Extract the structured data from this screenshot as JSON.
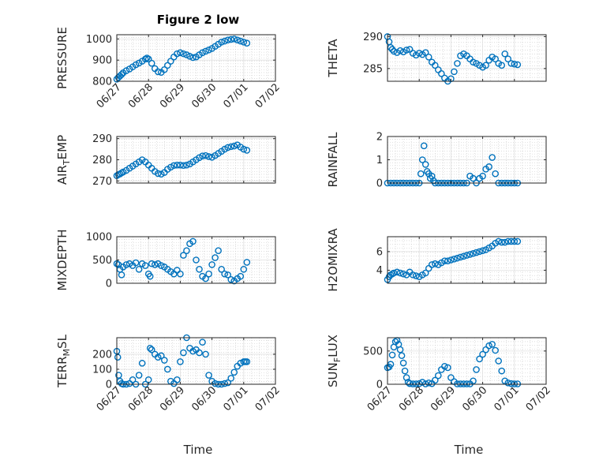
{
  "figure_title": "Figure 2 low",
  "xlabel": "Time",
  "colors": {
    "marker": "#0072bd",
    "axes": "#262626",
    "grid": "#c8c8c8"
  },
  "chart_data": [
    {
      "type": "scatter",
      "ylabel_main": "PRESSURE",
      "ylabel_sub": "",
      "ylabel_tail": "",
      "xlim": [
        0,
        5
      ],
      "ylim": [
        800,
        1020
      ],
      "yticks": [
        800,
        900,
        1000
      ],
      "xticks": [
        0,
        1,
        2,
        3,
        4,
        5
      ],
      "xtick_labels": [
        "06/27",
        "06/28",
        "06/29",
        "06/30",
        "07/01",
        "07/02"
      ],
      "x_tick_labels_shown": true,
      "grid": true,
      "x": [
        0.0,
        0.05,
        0.1,
        0.15,
        0.2,
        0.3,
        0.4,
        0.5,
        0.6,
        0.7,
        0.8,
        0.9,
        0.95,
        1.0,
        1.1,
        1.2,
        1.3,
        1.4,
        1.5,
        1.6,
        1.7,
        1.8,
        1.9,
        2.0,
        2.1,
        2.2,
        2.3,
        2.4,
        2.5,
        2.6,
        2.7,
        2.8,
        2.9,
        3.0,
        3.1,
        3.2,
        3.3,
        3.4,
        3.5,
        3.6,
        3.7,
        3.8,
        3.9,
        4.0,
        4.1
      ],
      "y": [
        810,
        818,
        825,
        832,
        840,
        850,
        858,
        868,
        878,
        886,
        895,
        905,
        910,
        905,
        885,
        860,
        845,
        842,
        855,
        875,
        895,
        915,
        930,
        935,
        930,
        925,
        918,
        912,
        915,
        925,
        935,
        942,
        948,
        955,
        965,
        975,
        985,
        990,
        995,
        998,
        1000,
        995,
        990,
        985,
        980
      ]
    },
    {
      "type": "scatter",
      "ylabel_main": "THETA",
      "ylabel_sub": "",
      "ylabel_tail": "",
      "xlim": [
        0,
        5
      ],
      "ylim": [
        283,
        290.3
      ],
      "yticks": [
        285,
        290
      ],
      "xticks": [
        0,
        1,
        2,
        3,
        4,
        5
      ],
      "xtick_labels": [
        "06/27",
        "06/28",
        "06/29",
        "06/30",
        "07/01",
        "07/02"
      ],
      "x_tick_labels_shown": false,
      "grid": true,
      "x": [
        0.0,
        0.05,
        0.1,
        0.15,
        0.2,
        0.3,
        0.4,
        0.5,
        0.6,
        0.7,
        0.8,
        0.9,
        1.0,
        1.1,
        1.2,
        1.3,
        1.4,
        1.5,
        1.6,
        1.7,
        1.8,
        1.9,
        2.0,
        2.1,
        2.2,
        2.3,
        2.4,
        2.5,
        2.6,
        2.7,
        2.8,
        2.9,
        3.0,
        3.1,
        3.2,
        3.3,
        3.4,
        3.5,
        3.6,
        3.7,
        3.8,
        3.9,
        4.0,
        4.1
      ],
      "y": [
        290,
        289.2,
        288.3,
        288,
        287.7,
        287.5,
        287.8,
        287.6,
        287.9,
        288,
        287.4,
        287.1,
        287.4,
        287.2,
        287.5,
        286.8,
        286,
        285.5,
        284.8,
        284.2,
        283.5,
        283,
        283.4,
        284.5,
        285.8,
        287,
        287.3,
        287,
        286.5,
        286,
        285.8,
        285.5,
        285.2,
        285.5,
        286.3,
        286.8,
        286.5,
        285.8,
        285.5,
        287.3,
        286.5,
        285.8,
        285.7,
        285.6
      ]
    },
    {
      "type": "scatter",
      "ylabel_main": "AIR",
      "ylabel_sub": "T",
      "ylabel_tail": "EMP",
      "xlim": [
        0,
        5
      ],
      "ylim": [
        269,
        291
      ],
      "yticks": [
        270,
        280,
        290
      ],
      "xticks": [
        0,
        1,
        2,
        3,
        4,
        5
      ],
      "xtick_labels": [
        "06/27",
        "06/28",
        "06/29",
        "06/30",
        "07/01",
        "07/02"
      ],
      "x_tick_labels_shown": false,
      "grid": true,
      "x": [
        0.0,
        0.05,
        0.1,
        0.15,
        0.2,
        0.3,
        0.4,
        0.5,
        0.6,
        0.7,
        0.8,
        0.9,
        1.0,
        1.1,
        1.2,
        1.3,
        1.4,
        1.5,
        1.6,
        1.7,
        1.8,
        1.9,
        2.0,
        2.1,
        2.2,
        2.3,
        2.4,
        2.5,
        2.6,
        2.7,
        2.8,
        2.9,
        3.0,
        3.1,
        3.2,
        3.3,
        3.4,
        3.5,
        3.6,
        3.7,
        3.8,
        3.9,
        4.0,
        4.1
      ],
      "y": [
        272.5,
        273,
        273.3,
        273.8,
        274.2,
        275,
        276,
        277,
        278,
        279,
        280,
        279,
        277.5,
        276,
        274.5,
        273.5,
        273.2,
        274,
        275.5,
        276.5,
        277.3,
        277.5,
        277.5,
        277.3,
        277.5,
        278,
        279,
        280,
        281,
        281.8,
        282,
        281.5,
        281.2,
        282,
        283,
        284,
        285,
        285.8,
        286.2,
        286.5,
        287,
        286,
        285,
        284.5
      ]
    },
    {
      "type": "scatter",
      "ylabel_main": "RAINFALL",
      "ylabel_sub": "",
      "ylabel_tail": "",
      "xlim": [
        0,
        5
      ],
      "ylim": [
        0,
        2
      ],
      "yticks": [
        0,
        1,
        2
      ],
      "xticks": [
        0,
        1,
        2,
        3,
        4,
        5
      ],
      "xtick_labels": [
        "06/27",
        "06/28",
        "06/29",
        "06/30",
        "07/01",
        "07/02"
      ],
      "x_tick_labels_shown": false,
      "grid": true,
      "x": [
        0.0,
        0.1,
        0.2,
        0.3,
        0.4,
        0.5,
        0.6,
        0.7,
        0.8,
        0.9,
        1.0,
        1.05,
        1.1,
        1.15,
        1.2,
        1.25,
        1.3,
        1.35,
        1.4,
        1.45,
        1.5,
        1.6,
        1.7,
        1.8,
        1.9,
        2.0,
        2.1,
        2.2,
        2.3,
        2.4,
        2.5,
        2.6,
        2.7,
        2.8,
        2.9,
        3.0,
        3.1,
        3.2,
        3.3,
        3.4,
        3.5,
        3.6,
        3.7,
        3.8,
        3.9,
        4.0,
        4.1
      ],
      "y": [
        0,
        0,
        0,
        0,
        0,
        0,
        0,
        0,
        0,
        0,
        0,
        0.4,
        1.0,
        1.6,
        0.8,
        0.5,
        0.4,
        0.2,
        0.3,
        0.1,
        0,
        0,
        0,
        0,
        0,
        0,
        0,
        0,
        0,
        0,
        0,
        0.3,
        0.2,
        0,
        0.2,
        0.3,
        0.6,
        0.7,
        1.1,
        0.4,
        0,
        0,
        0,
        0,
        0,
        0,
        0
      ]
    },
    {
      "type": "scatter",
      "ylabel_main": "MIXDEPTH",
      "ylabel_sub": "",
      "ylabel_tail": "",
      "xlim": [
        0,
        5
      ],
      "ylim": [
        0,
        1000
      ],
      "yticks": [
        0,
        500,
        1000
      ],
      "xticks": [
        0,
        1,
        2,
        3,
        4,
        5
      ],
      "xtick_labels": [
        "06/27",
        "06/28",
        "06/29",
        "06/30",
        "07/01",
        "07/02"
      ],
      "x_tick_labels_shown": false,
      "grid": true,
      "x": [
        0.0,
        0.05,
        0.1,
        0.15,
        0.2,
        0.3,
        0.4,
        0.5,
        0.6,
        0.7,
        0.8,
        0.9,
        1.0,
        1.05,
        1.1,
        1.2,
        1.3,
        1.4,
        1.5,
        1.6,
        1.7,
        1.8,
        1.9,
        2.0,
        2.1,
        2.2,
        2.3,
        2.4,
        2.5,
        2.6,
        2.7,
        2.8,
        2.9,
        3.0,
        3.1,
        3.2,
        3.3,
        3.4,
        3.5,
        3.6,
        3.7,
        3.8,
        3.9,
        4.0,
        4.1
      ],
      "y": [
        420,
        400,
        300,
        180,
        350,
        400,
        420,
        380,
        440,
        300,
        420,
        380,
        200,
        150,
        420,
        400,
        420,
        380,
        350,
        300,
        250,
        200,
        280,
        200,
        600,
        700,
        850,
        900,
        500,
        300,
        150,
        100,
        200,
        400,
        550,
        700,
        300,
        200,
        180,
        80,
        50,
        100,
        150,
        300,
        450
      ]
    },
    {
      "type": "scatter",
      "ylabel_main": "H2OMIXRA",
      "ylabel_sub": "",
      "ylabel_tail": "",
      "xlim": [
        0,
        5
      ],
      "ylim": [
        2.6,
        7.6
      ],
      "yticks": [
        4,
        6
      ],
      "xticks": [
        0,
        1,
        2,
        3,
        4,
        5
      ],
      "xtick_labels": [
        "06/27",
        "06/28",
        "06/29",
        "06/30",
        "07/01",
        "07/02"
      ],
      "x_tick_labels_shown": false,
      "grid": true,
      "x": [
        0.0,
        0.05,
        0.1,
        0.15,
        0.2,
        0.3,
        0.4,
        0.5,
        0.6,
        0.7,
        0.8,
        0.9,
        1.0,
        1.1,
        1.2,
        1.3,
        1.4,
        1.5,
        1.6,
        1.7,
        1.8,
        1.9,
        2.0,
        2.1,
        2.2,
        2.3,
        2.4,
        2.5,
        2.6,
        2.7,
        2.8,
        2.9,
        3.0,
        3.1,
        3.2,
        3.3,
        3.4,
        3.5,
        3.6,
        3.7,
        3.8,
        3.9,
        4.0,
        4.1
      ],
      "y": [
        3.0,
        3.3,
        3.5,
        3.6,
        3.7,
        3.8,
        3.7,
        3.6,
        3.5,
        3.8,
        3.5,
        3.4,
        3.3,
        3.5,
        3.7,
        4.2,
        4.6,
        4.7,
        4.6,
        4.8,
        5.0,
        5.0,
        5.1,
        5.2,
        5.3,
        5.4,
        5.5,
        5.6,
        5.7,
        5.8,
        5.9,
        6.0,
        6.1,
        6.2,
        6.4,
        6.6,
        6.9,
        7.1,
        7.0,
        7.0,
        7.1,
        7.1,
        7.1,
        7.1
      ]
    },
    {
      "type": "scatter",
      "ylabel_main": "TERR",
      "ylabel_sub": "M",
      "ylabel_tail": "SL",
      "xlim": [
        0,
        5
      ],
      "ylim": [
        0,
        310
      ],
      "yticks": [
        0,
        100,
        200
      ],
      "xticks": [
        0,
        1,
        2,
        3,
        4,
        5
      ],
      "xtick_labels": [
        "06/27",
        "06/28",
        "06/29",
        "06/30",
        "07/01",
        "07/02"
      ],
      "x_tick_labels_shown": true,
      "grid": true,
      "x": [
        0.0,
        0.03,
        0.06,
        0.1,
        0.15,
        0.2,
        0.3,
        0.4,
        0.5,
        0.6,
        0.7,
        0.8,
        0.9,
        1.0,
        1.05,
        1.1,
        1.2,
        1.3,
        1.4,
        1.5,
        1.6,
        1.7,
        1.8,
        1.9,
        2.0,
        2.1,
        2.2,
        2.3,
        2.4,
        2.5,
        2.6,
        2.7,
        2.8,
        2.9,
        3.0,
        3.1,
        3.2,
        3.3,
        3.4,
        3.5,
        3.6,
        3.7,
        3.8,
        3.9,
        4.0,
        4.05,
        4.1
      ],
      "y": [
        220,
        180,
        60,
        20,
        5,
        0,
        0,
        5,
        30,
        0,
        60,
        140,
        0,
        30,
        240,
        230,
        200,
        180,
        190,
        160,
        100,
        20,
        5,
        30,
        150,
        210,
        310,
        240,
        220,
        230,
        210,
        280,
        200,
        60,
        20,
        5,
        0,
        0,
        5,
        10,
        40,
        80,
        120,
        140,
        150,
        150,
        150
      ]
    },
    {
      "type": "scatter",
      "ylabel_main": "SUN",
      "ylabel_sub": "F",
      "ylabel_tail": "LUX",
      "xlim": [
        0,
        5
      ],
      "ylim": [
        0,
        700
      ],
      "yticks": [
        0,
        500
      ],
      "xticks": [
        0,
        1,
        2,
        3,
        4,
        5
      ],
      "xtick_labels": [
        "06/27",
        "06/28",
        "06/29",
        "06/30",
        "07/01",
        "07/02"
      ],
      "x_tick_labels_shown": true,
      "grid": true,
      "x": [
        0.0,
        0.05,
        0.1,
        0.15,
        0.2,
        0.25,
        0.3,
        0.35,
        0.4,
        0.45,
        0.5,
        0.55,
        0.6,
        0.65,
        0.7,
        0.8,
        0.9,
        1.0,
        1.1,
        1.2,
        1.3,
        1.4,
        1.5,
        1.6,
        1.7,
        1.8,
        1.9,
        2.0,
        2.1,
        2.2,
        2.3,
        2.4,
        2.5,
        2.6,
        2.7,
        2.8,
        2.9,
        3.0,
        3.1,
        3.2,
        3.3,
        3.4,
        3.5,
        3.6,
        3.7,
        3.8,
        3.9,
        4.0,
        4.1
      ],
      "y": [
        250,
        260,
        300,
        440,
        560,
        640,
        660,
        600,
        520,
        430,
        320,
        200,
        100,
        30,
        10,
        5,
        5,
        10,
        30,
        5,
        20,
        10,
        60,
        130,
        220,
        270,
        250,
        100,
        40,
        5,
        5,
        5,
        5,
        5,
        50,
        220,
        380,
        450,
        520,
        580,
        600,
        510,
        350,
        200,
        50,
        20,
        10,
        5,
        5
      ]
    }
  ]
}
